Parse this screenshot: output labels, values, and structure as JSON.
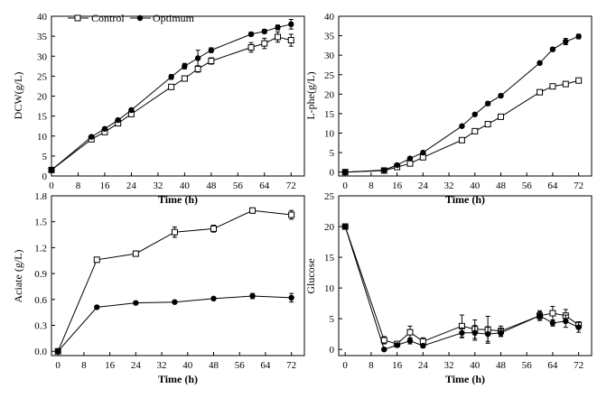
{
  "legend": {
    "control": "Control",
    "optimum": "Optimum"
  },
  "chart_data": [
    {
      "type": "line",
      "title": "",
      "xlabel": "Time (h)",
      "ylabel": "DCW(g/L)",
      "xlim": [
        0,
        76
      ],
      "ylim": [
        0,
        40
      ],
      "xticks": [
        0,
        8,
        16,
        24,
        32,
        40,
        48,
        56,
        64,
        72
      ],
      "yticks": [
        0,
        5,
        10,
        15,
        20,
        25,
        30,
        35,
        40
      ],
      "tick_decimals": 0,
      "legend_position": "top-left",
      "series": [
        {
          "name": "Control",
          "marker": "open-square",
          "x": [
            0,
            12,
            16,
            20,
            24,
            36,
            40,
            44,
            48,
            60,
            64,
            68,
            72
          ],
          "y": [
            1.5,
            9.2,
            11.0,
            13.2,
            15.5,
            22.3,
            24.4,
            26.8,
            28.8,
            32.2,
            33.2,
            34.8,
            34.0
          ],
          "err": [
            0.3,
            0.4,
            0.4,
            0.4,
            0.5,
            0.6,
            0.6,
            0.8,
            0.8,
            1.2,
            1.3,
            1.3,
            1.5
          ]
        },
        {
          "name": "Optimum",
          "marker": "filled-circle",
          "x": [
            0,
            12,
            16,
            20,
            24,
            36,
            40,
            44,
            48,
            60,
            64,
            68,
            72
          ],
          "y": [
            1.5,
            9.8,
            11.8,
            14.0,
            16.5,
            24.8,
            27.5,
            29.5,
            31.5,
            35.5,
            36.2,
            37.2,
            38.0
          ],
          "err": [
            0.3,
            0.4,
            0.4,
            0.4,
            0.5,
            0.6,
            0.7,
            2.0,
            0.6,
            0.5,
            0.5,
            0.6,
            1.2
          ]
        }
      ]
    },
    {
      "type": "line",
      "title": "",
      "xlabel": "Time (h)",
      "ylabel": "L-phe(g/L)",
      "xlim": [
        -2,
        76
      ],
      "ylim": [
        -1,
        40
      ],
      "xticks": [
        0,
        8,
        16,
        24,
        32,
        40,
        48,
        56,
        64,
        72
      ],
      "yticks": [
        0,
        5,
        10,
        15,
        20,
        25,
        30,
        35,
        40
      ],
      "tick_decimals": 0,
      "series": [
        {
          "name": "Control",
          "marker": "open-square",
          "x": [
            0,
            12,
            16,
            20,
            24,
            36,
            40,
            44,
            48,
            60,
            64,
            68,
            72
          ],
          "y": [
            0.0,
            0.4,
            1.3,
            2.2,
            3.8,
            8.2,
            10.5,
            12.3,
            14.2,
            20.5,
            22.0,
            22.6,
            23.5
          ],
          "err": [
            0.1,
            0.1,
            0.2,
            0.2,
            0.3,
            0.3,
            0.3,
            0.4,
            0.4,
            0.4,
            0.4,
            0.4,
            0.5
          ]
        },
        {
          "name": "Optimum",
          "marker": "filled-circle",
          "x": [
            0,
            12,
            16,
            20,
            24,
            36,
            40,
            44,
            48,
            60,
            64,
            68,
            72
          ],
          "y": [
            0.0,
            0.5,
            1.8,
            3.5,
            5.0,
            11.8,
            14.8,
            17.6,
            19.6,
            28.0,
            31.5,
            33.5,
            34.8
          ],
          "err": [
            0.1,
            0.1,
            0.2,
            0.3,
            0.3,
            0.4,
            0.4,
            0.5,
            0.4,
            0.4,
            0.5,
            0.8,
            0.6
          ]
        }
      ]
    },
    {
      "type": "line",
      "title": "",
      "xlabel": "Time (h)",
      "ylabel": "Aciate (g/L)",
      "xlim": [
        -2,
        76
      ],
      "ylim": [
        -0.05,
        1.8
      ],
      "xticks": [
        0,
        8,
        16,
        24,
        32,
        40,
        48,
        56,
        64,
        72
      ],
      "yticks": [
        0.0,
        0.3,
        0.6,
        0.9,
        1.2,
        1.5,
        1.8
      ],
      "tick_decimals": 1,
      "series": [
        {
          "name": "Control",
          "marker": "open-square",
          "x": [
            0,
            12,
            24,
            36,
            48,
            60,
            72
          ],
          "y": [
            0.0,
            1.06,
            1.13,
            1.38,
            1.42,
            1.63,
            1.58
          ],
          "err": [
            0.01,
            0.02,
            0.03,
            0.06,
            0.04,
            0.03,
            0.05
          ]
        },
        {
          "name": "Optimum",
          "marker": "filled-circle",
          "x": [
            0,
            12,
            24,
            36,
            48,
            60,
            72
          ],
          "y": [
            0.0,
            0.51,
            0.56,
            0.57,
            0.61,
            0.64,
            0.62
          ],
          "err": [
            0.01,
            0.01,
            0.01,
            0.01,
            0.01,
            0.03,
            0.05
          ]
        }
      ]
    },
    {
      "type": "line",
      "title": "",
      "xlabel": "Time (h)",
      "ylabel": "Glucose",
      "xlim": [
        -2,
        76
      ],
      "ylim": [
        -1,
        25
      ],
      "xticks": [
        0,
        8,
        16,
        24,
        32,
        40,
        48,
        56,
        64,
        72
      ],
      "yticks": [
        0,
        5,
        10,
        15,
        20,
        25
      ],
      "tick_decimals": 0,
      "series": [
        {
          "name": "Control",
          "marker": "open-square",
          "x": [
            0,
            12,
            16,
            20,
            24,
            36,
            40,
            44,
            48,
            60,
            64,
            68,
            72
          ],
          "y": [
            20.0,
            1.5,
            0.9,
            2.8,
            1.3,
            3.8,
            3.3,
            3.2,
            3.0,
            5.5,
            5.9,
            5.5,
            4.0
          ],
          "err": [
            0.2,
            0.6,
            0.3,
            1.0,
            0.6,
            1.8,
            1.5,
            2.2,
            0.8,
            0.8,
            1.1,
            1.0,
            0.5
          ]
        },
        {
          "name": "Optimum",
          "marker": "filled-circle",
          "x": [
            0,
            12,
            16,
            20,
            24,
            36,
            40,
            44,
            48,
            60,
            64,
            68,
            72
          ],
          "y": [
            20.0,
            0.0,
            0.7,
            1.4,
            0.6,
            2.7,
            2.7,
            2.5,
            2.7,
            5.5,
            4.3,
            4.6,
            3.6
          ],
          "err": [
            0.2,
            0.2,
            0.2,
            0.5,
            0.3,
            0.8,
            1.2,
            1.2,
            0.6,
            0.6,
            0.5,
            1.0,
            0.8
          ]
        }
      ]
    }
  ]
}
